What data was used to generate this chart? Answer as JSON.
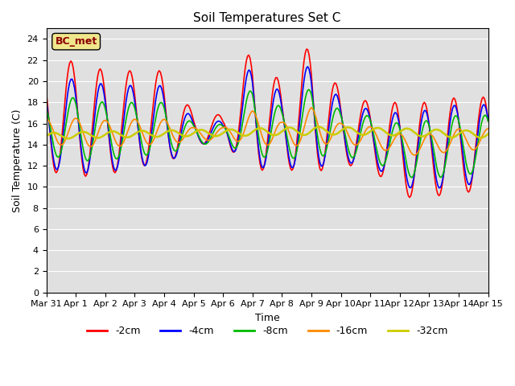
{
  "title": "Soil Temperatures Set C",
  "xlabel": "Time",
  "ylabel": "Soil Temperature (C)",
  "ylim": [
    0,
    25
  ],
  "yticks": [
    0,
    2,
    4,
    6,
    8,
    10,
    12,
    14,
    16,
    18,
    20,
    22,
    24
  ],
  "background_color": "#e0e0e0",
  "legend_label": "BC_met",
  "legend_box_color": "#f0e68c",
  "legend_text_color": "#8b0000",
  "series": {
    "-2cm": {
      "color": "#ff0000",
      "lw": 1.2
    },
    "-4cm": {
      "color": "#0000ff",
      "lw": 1.2
    },
    "-8cm": {
      "color": "#00bb00",
      "lw": 1.2
    },
    "-16cm": {
      "color": "#ff8800",
      "lw": 1.2
    },
    "-32cm": {
      "color": "#cccc00",
      "lw": 1.8
    }
  },
  "xtick_labels": [
    "Mar 31",
    "Apr 1",
    "Apr 2",
    "Apr 3",
    "Apr 4",
    "Apr 5",
    "Apr 6",
    "Apr 7",
    "Apr 8",
    "Apr 9",
    "Apr 10",
    "Apr 11",
    "Apr 12",
    "Apr 13",
    "Apr 14",
    "Apr 15"
  ]
}
